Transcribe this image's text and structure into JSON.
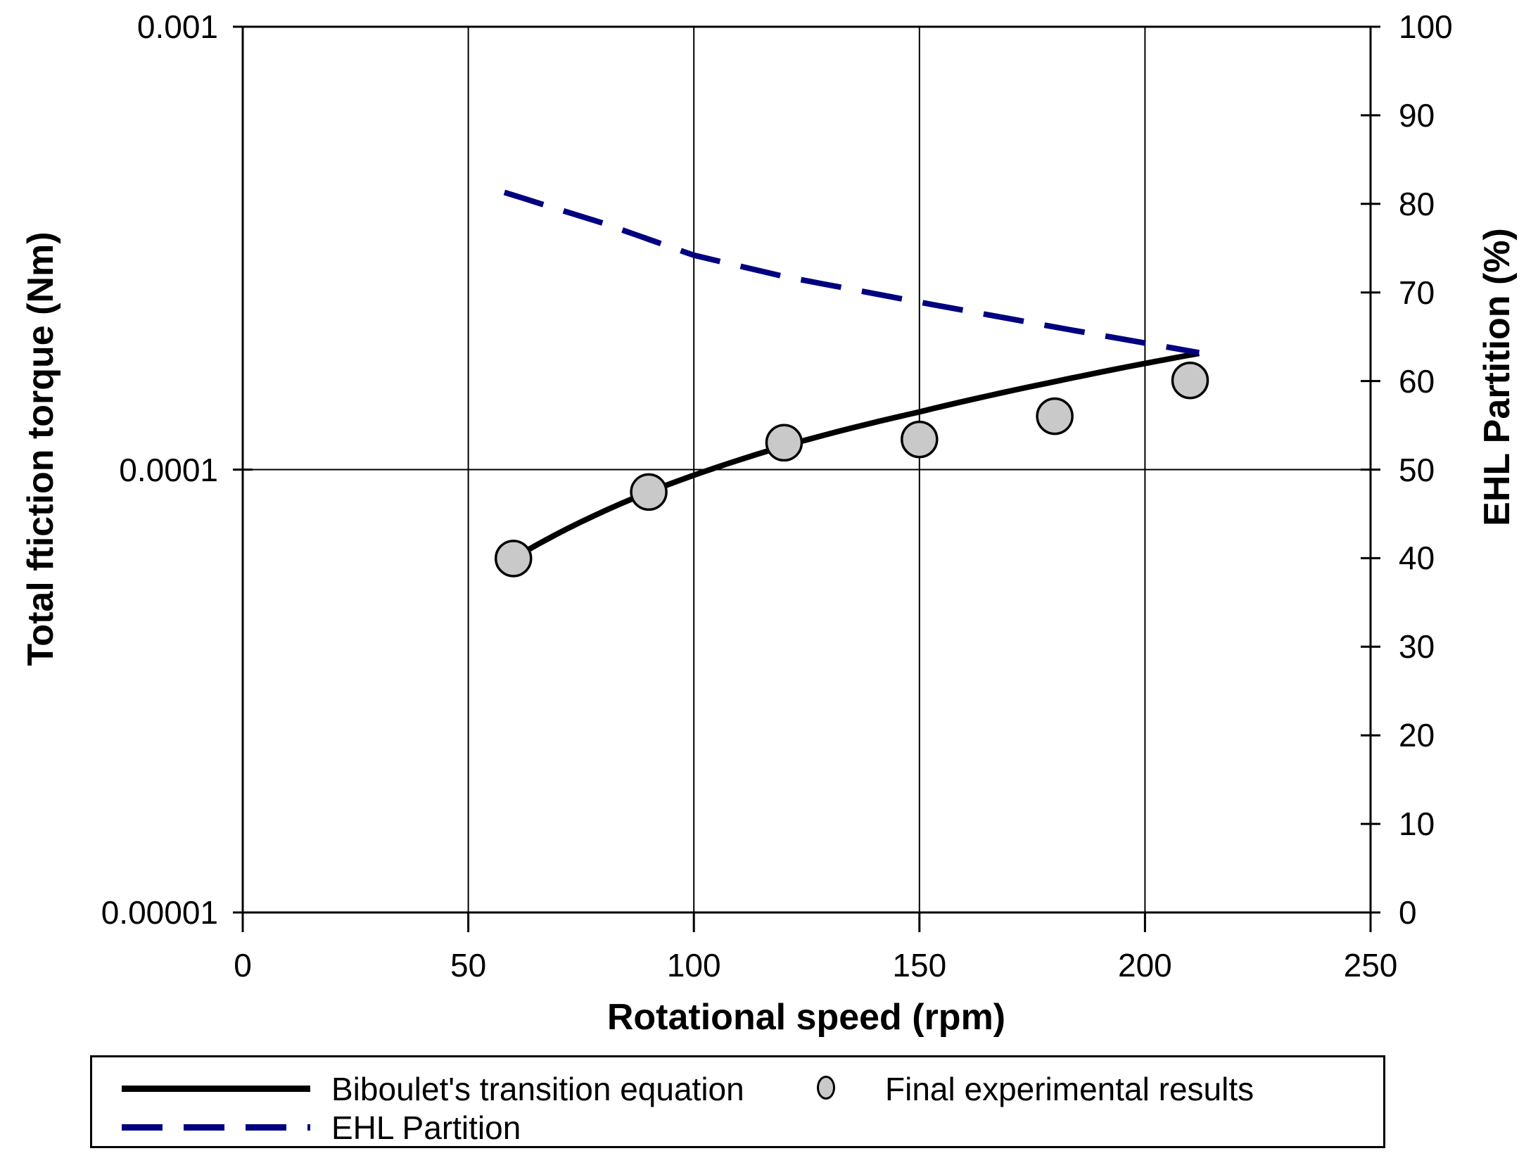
{
  "chart_data": {
    "type": "line",
    "title": "",
    "x_axis": {
      "label": "Rotational speed (rpm)",
      "min": 0,
      "max": 250,
      "ticks": [
        0,
        50,
        100,
        150,
        200,
        250
      ],
      "gridlines_at": [
        50,
        100,
        150,
        200
      ]
    },
    "y_left_axis": {
      "label": "Total ftiction torque (Nm)",
      "scale": "log",
      "min": 1e-05,
      "max": 0.001,
      "ticks": [
        {
          "label": "0.001",
          "value": 0.001
        },
        {
          "label": "0.0001",
          "value": 0.0001
        },
        {
          "label": "0.00001",
          "value": 1e-05
        }
      ],
      "gridlines_at": [
        0.0001
      ]
    },
    "y_right_axis": {
      "label": "EHL Partition (%)",
      "min": 0,
      "max": 100,
      "ticks": [
        100,
        90,
        80,
        70,
        60,
        50,
        40,
        30,
        20,
        10,
        0
      ]
    },
    "series": [
      {
        "name": "Biboulet's transition equation",
        "type": "line",
        "axis": "left",
        "style": "solid",
        "color": "#000000",
        "stroke_width": 8,
        "points": [
          [
            60,
            6.3e-05
          ],
          [
            90,
            8.9e-05
          ],
          [
            120,
            0.000113
          ],
          [
            150,
            0.000135
          ],
          [
            180,
            0.000158
          ],
          [
            212,
            0.000183
          ]
        ]
      },
      {
        "name": "Final experimental results",
        "type": "scatter",
        "axis": "left",
        "marker": "circle",
        "marker_fill": "#c9c9c9",
        "marker_stroke": "#000000",
        "marker_radius": 25,
        "points": [
          [
            60,
            6.3e-05
          ],
          [
            90,
            8.9e-05
          ],
          [
            120,
            0.000115
          ],
          [
            150,
            0.000117
          ],
          [
            180,
            0.000132
          ],
          [
            210,
            0.000159
          ]
        ]
      },
      {
        "name": "EHL Partition",
        "type": "line",
        "axis": "right",
        "style": "dashed",
        "color": "#000080",
        "stroke_width": 8,
        "points": [
          [
            58,
            81.3
          ],
          [
            80,
            77.8
          ],
          [
            100,
            74.2
          ],
          [
            120,
            71.8
          ],
          [
            150,
            68.9
          ],
          [
            180,
            66.1
          ],
          [
            212,
            63.2
          ]
        ]
      }
    ],
    "legend": {
      "position": "bottom",
      "border": true
    },
    "grid_on": true,
    "plot_background": "#ffffff"
  }
}
